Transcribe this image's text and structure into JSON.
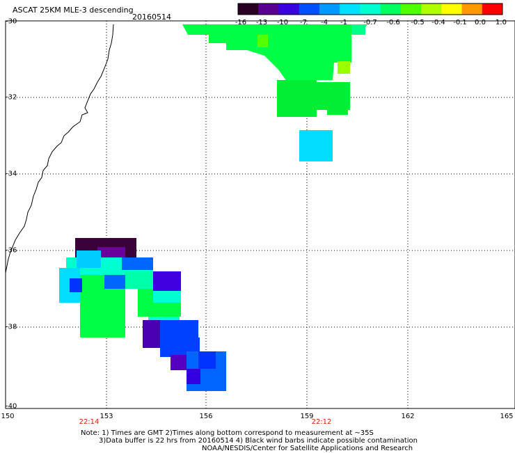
{
  "header": {
    "title": "ASCAT 25KM MLE-3 descending",
    "date": "20160514"
  },
  "colorbar": {
    "labels": [
      "-16",
      "-13",
      "-10",
      "-7",
      "-4",
      "-1",
      "-0.7",
      "-0.6",
      "-0.5",
      "-0.4",
      "-0.1",
      "0.0",
      "1.0"
    ],
    "colors": [
      "#2a0022",
      "#5a0090",
      "#3a00e0",
      "#0050ff",
      "#0099ff",
      "#00e0ff",
      "#00ffd0",
      "#00ff60",
      "#50ff00",
      "#b0ff00",
      "#ffff00",
      "#ff9900",
      "#ff0000"
    ]
  },
  "axes": {
    "lat_labels": [
      "-30",
      "-32",
      "-34",
      "-36",
      "-38",
      "-40"
    ],
    "lon_labels": [
      "150",
      "153",
      "156",
      "159",
      "162",
      "165"
    ],
    "lat_range": [
      -40,
      -30
    ],
    "lon_range": [
      150,
      165
    ]
  },
  "time_labels": [
    "22:14",
    "22:12"
  ],
  "notes": {
    "line1": "Note: 1) Times are GMT 2)Times along bottom correspond to measurement at ~35S",
    "line2": "3)Data buffer is 22 hrs from 20160514 4) Black wind barbs indicate possible contamination",
    "line3": "NOAA/NESDIS/Center for Satellite Applications and Research"
  }
}
